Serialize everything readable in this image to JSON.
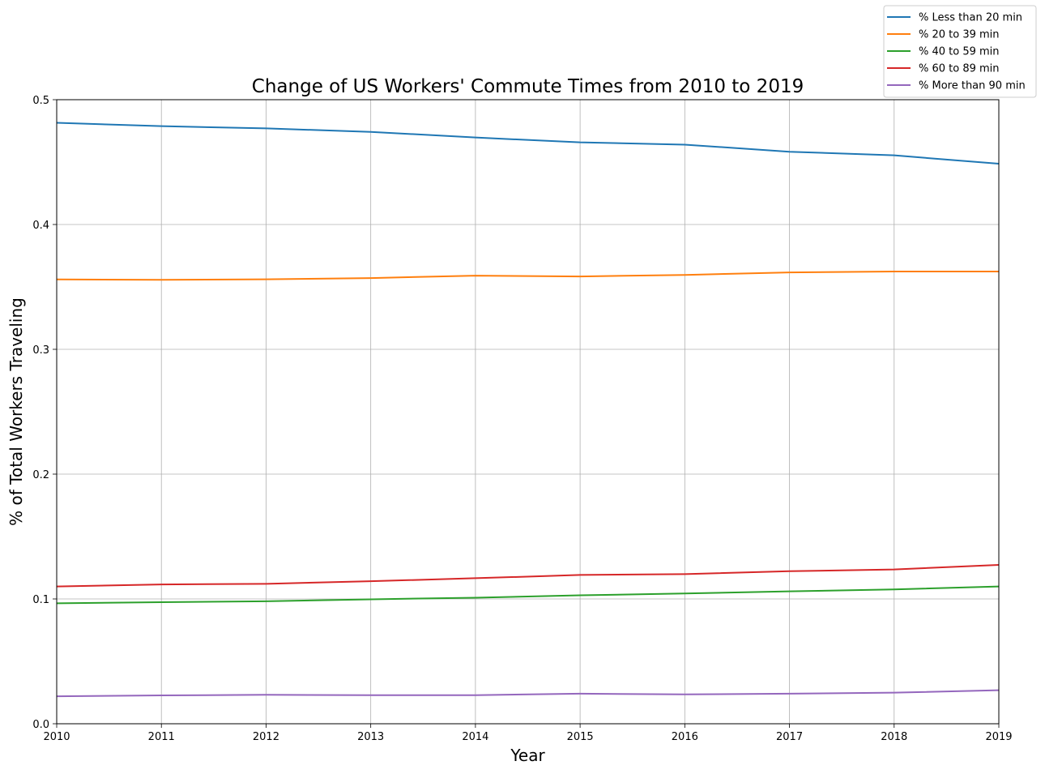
{
  "chart_data": {
    "type": "line",
    "title": "Change of US Workers' Commute Times from 2010 to 2019",
    "xlabel": "Year",
    "ylabel": "% of Total Workers Traveling",
    "x": [
      2010,
      2011,
      2012,
      2013,
      2014,
      2015,
      2016,
      2017,
      2018,
      2019
    ],
    "xlim": [
      2010,
      2019
    ],
    "ylim": [
      0.0,
      0.5
    ],
    "xticks": [
      "2010",
      "2011",
      "2012",
      "2013",
      "2014",
      "2015",
      "2016",
      "2017",
      "2018",
      "2019"
    ],
    "yticks": [
      "0.0",
      "0.1",
      "0.2",
      "0.3",
      "0.4",
      "0.5"
    ],
    "grid": true,
    "legend_position": "top-right",
    "series": [
      {
        "name": "% Less than 20 min",
        "color": "#1f77b4",
        "values": [
          0.4815,
          0.4788,
          0.477,
          0.4742,
          0.4697,
          0.4658,
          0.464,
          0.4583,
          0.4554,
          0.4487
        ]
      },
      {
        "name": "% 20 to 39 min",
        "color": "#ff7f0e",
        "values": [
          0.356,
          0.3557,
          0.3561,
          0.3571,
          0.359,
          0.3584,
          0.3596,
          0.3616,
          0.3623,
          0.3623
        ]
      },
      {
        "name": "% 40 to 59 min",
        "color": "#2ca02c",
        "values": [
          0.0965,
          0.0974,
          0.0981,
          0.0997,
          0.101,
          0.1029,
          0.1044,
          0.1061,
          0.1076,
          0.11
        ]
      },
      {
        "name": "% 60 to 89 min",
        "color": "#d62728",
        "values": [
          0.11,
          0.1116,
          0.1121,
          0.1142,
          0.1166,
          0.1192,
          0.1199,
          0.1222,
          0.1236,
          0.1273
        ]
      },
      {
        "name": "% More than 90 min",
        "color": "#9467bd",
        "values": [
          0.022,
          0.0227,
          0.0232,
          0.0229,
          0.0229,
          0.0241,
          0.0235,
          0.0241,
          0.0249,
          0.0269
        ]
      }
    ]
  }
}
